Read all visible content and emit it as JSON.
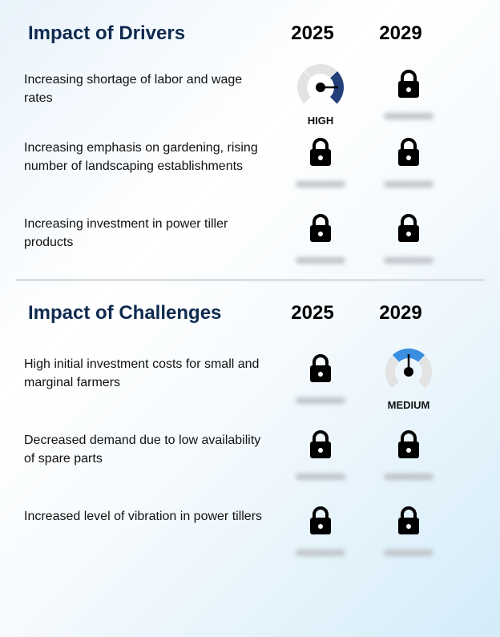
{
  "drivers": {
    "title": "Impact of Drivers",
    "years": [
      "2025",
      "2029"
    ],
    "rows": [
      {
        "label": "Increasing shortage of labor and wage rates",
        "cells": [
          {
            "type": "gauge",
            "level": "HIGH"
          },
          {
            "type": "lock"
          }
        ]
      },
      {
        "label": "Increasing emphasis on gardening, rising number of landscaping establishments",
        "cells": [
          {
            "type": "lock"
          },
          {
            "type": "lock"
          }
        ]
      },
      {
        "label": "Increasing investment in power tiller products",
        "cells": [
          {
            "type": "lock"
          },
          {
            "type": "lock"
          }
        ]
      }
    ]
  },
  "challenges": {
    "title": "Impact of Challenges",
    "years": [
      "2025",
      "2029"
    ],
    "rows": [
      {
        "label": "High initial investment costs for small and marginal farmers",
        "cells": [
          {
            "type": "lock"
          },
          {
            "type": "gauge",
            "level": "MEDIUM"
          }
        ]
      },
      {
        "label": "Decreased demand due to low availability of spare parts",
        "cells": [
          {
            "type": "lock"
          },
          {
            "type": "lock"
          }
        ]
      },
      {
        "label": "Increased level of vibration in power tillers",
        "cells": [
          {
            "type": "lock"
          },
          {
            "type": "lock"
          }
        ]
      }
    ]
  },
  "colors": {
    "title": "#0f2a4f",
    "high": "#233f7a",
    "medium": "#3a8ee0",
    "gauge_track": "#e3e3e3"
  },
  "icons": {
    "locked": "lock-icon",
    "gauge": "gauge-icon"
  }
}
